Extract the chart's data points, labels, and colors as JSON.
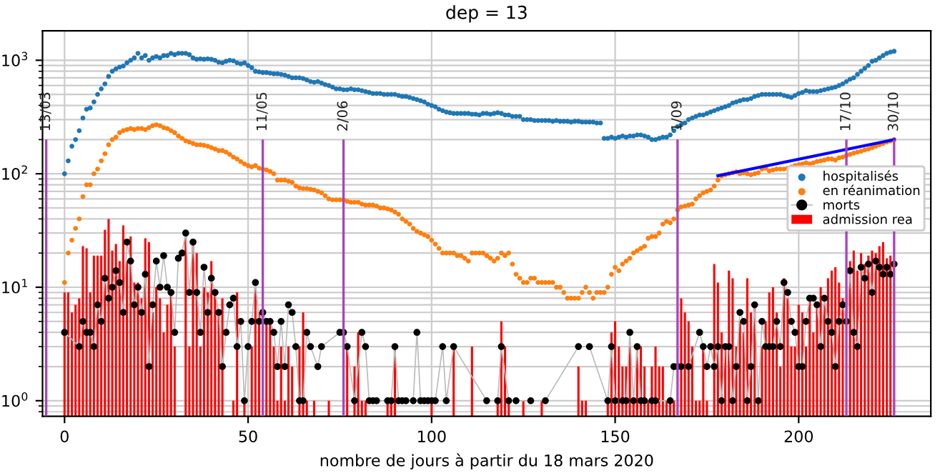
{
  "chart_data": {
    "type": "scatter",
    "title": "dep = 13",
    "xlabel": "nombre de jours à partir du 18 mars 2020",
    "x": [
      0,
      1,
      2,
      3,
      4,
      5,
      6,
      7,
      8,
      9,
      10,
      11,
      12,
      13,
      14,
      15,
      16,
      17,
      18,
      19,
      20,
      21,
      22,
      23,
      24,
      25,
      26,
      27,
      28,
      29,
      30,
      31,
      32,
      33,
      34,
      35,
      36,
      37,
      38,
      39,
      40,
      41,
      42,
      43,
      44,
      45,
      46,
      47,
      48,
      49,
      50,
      51,
      52,
      53,
      54,
      55,
      56,
      57,
      58,
      59,
      60,
      61,
      62,
      63,
      64,
      65,
      66,
      67,
      68,
      69,
      70,
      71,
      72,
      73,
      74,
      75,
      76,
      77,
      78,
      79,
      80,
      81,
      82,
      83,
      84,
      85,
      86,
      87,
      88,
      89,
      90,
      91,
      92,
      93,
      94,
      95,
      96,
      97,
      98,
      99,
      100,
      101,
      102,
      103,
      104,
      105,
      106,
      107,
      108,
      109,
      110,
      111,
      112,
      113,
      114,
      115,
      116,
      117,
      118,
      119,
      120,
      121,
      122,
      123,
      124,
      125,
      126,
      127,
      128,
      129,
      130,
      131,
      132,
      133,
      134,
      135,
      136,
      137,
      138,
      139,
      140,
      141,
      142,
      143,
      144,
      145,
      146,
      147,
      148,
      149,
      150,
      151,
      152,
      153,
      154,
      155,
      156,
      157,
      158,
      159,
      160,
      161,
      162,
      163,
      164,
      165,
      166,
      167,
      168,
      169,
      170,
      171,
      172,
      173,
      174,
      175,
      176,
      177,
      178,
      179,
      180,
      181,
      182,
      183,
      184,
      185,
      186,
      187,
      188,
      189,
      190,
      191,
      192,
      193,
      194,
      195,
      196,
      197,
      198,
      199,
      200,
      201,
      202,
      203,
      204,
      205,
      206,
      207,
      208,
      209,
      210,
      211,
      212,
      213,
      214,
      215,
      216,
      217,
      218,
      219,
      220,
      221,
      222,
      223,
      224,
      225,
      226
    ],
    "series": [
      {
        "type": "bar",
        "name": "admission rea",
        "color": "#ff0000",
        "values": [
          9,
          9,
          6,
          7,
          8,
          23,
          22,
          9,
          19,
          19,
          19,
          32,
          40,
          21,
          24,
          17,
          35,
          17,
          28,
          11,
          11,
          8,
          27,
          25,
          6,
          10,
          8,
          4,
          7,
          9,
          3,
          null,
          null,
          28,
          3,
          24,
          20,
          3,
          10,
          9,
          17,
          9,
          6,
          8,
          null,
          null,
          1,
          9,
          null,
          1,
          null,
          3,
          10,
          6,
          null,
          5,
          5,
          3,
          1,
          3,
          1,
          3,
          2,
          null,
          3,
          6,
          1,
          null,
          1,
          null,
          null,
          null,
          1,
          null,
          null,
          null,
          null,
          3,
          null,
          2,
          4,
          1,
          1,
          null,
          null,
          null,
          null,
          null,
          1,
          1,
          3,
          null,
          null,
          null,
          null,
          null,
          null,
          null,
          null,
          null,
          1,
          null,
          null,
          null,
          null,
          null,
          3,
          null,
          null,
          null,
          null,
          3,
          null,
          null,
          null,
          null,
          null,
          null,
          1,
          5,
          3,
          1,
          null,
          null,
          null,
          1,
          null,
          null,
          null,
          null,
          1,
          null,
          null,
          null,
          null,
          null,
          null,
          null,
          null,
          null,
          2,
          1,
          1,
          null,
          null,
          null,
          null,
          null,
          1,
          4,
          5,
          3,
          2,
          2,
          3,
          1,
          3,
          3,
          2,
          1,
          2,
          3,
          2,
          2,
          1,
          1,
          1,
          null,
          8,
          6,
          5,
          3,
          1,
          1,
          3,
          1,
          null,
          16,
          11,
          4,
          3,
          14,
          12,
          3,
          5,
          4,
          12,
          6,
          7,
          1,
          3,
          5,
          9,
          10,
          6,
          2,
          12,
          8,
          3,
          3,
          7,
          6,
          3,
          8,
          4,
          7,
          10,
          7,
          12,
          14,
          15,
          11,
          8,
          null,
          17,
          21,
          14,
          20,
          16,
          19,
          21,
          20,
          23,
          25,
          18,
          19,
          null
        ]
      },
      {
        "name": "hospitalisés",
        "color": "#1f77b4",
        "values": [
          100,
          130,
          175,
          200,
          240,
          310,
          370,
          380,
          430,
          500,
          560,
          620,
          720,
          800,
          840,
          870,
          890,
          950,
          1000,
          1050,
          1150,
          1050,
          1100,
          1000,
          1050,
          1080,
          1050,
          1100,
          1100,
          1150,
          1120,
          1150,
          1150,
          1150,
          1120,
          1050,
          1020,
          1030,
          1020,
          1030,
          1020,
          1000,
          960,
          950,
          980,
          1000,
          990,
          950,
          930,
          950,
          900,
          860,
          800,
          790,
          780,
          780,
          770,
          760,
          760,
          750,
          740,
          720,
          700,
          700,
          700,
          690,
          670,
          650,
          640,
          650,
          630,
          610,
          600,
          580,
          560,
          560,
          550,
          550,
          560,
          550,
          550,
          540,
          530,
          520,
          510,
          510,
          510,
          500,
          500,
          500,
          500,
          490,
          480,
          480,
          470,
          460,
          450,
          440,
          430,
          410,
          400,
          390,
          370,
          360,
          350,
          345,
          340,
          340,
          340,
          340,
          340,
          335,
          335,
          330,
          340,
          340,
          335,
          340,
          345,
          340,
          330,
          330,
          320,
          320,
          320,
          300,
          300,
          300,
          295,
          295,
          295,
          295,
          295,
          290,
          295,
          290,
          290,
          290,
          285,
          290,
          290,
          285,
          285,
          285,
          285,
          280,
          280,
          205,
          205,
          210,
          205,
          210,
          215,
          210,
          215,
          215,
          220,
          220,
          215,
          210,
          200,
          200,
          205,
          210,
          210,
          220,
          240,
          260,
          270,
          280,
          300,
          310,
          320,
          330,
          330,
          340,
          350,
          360,
          370,
          380,
          390,
          400,
          420,
          430,
          440,
          450,
          450,
          460,
          480,
          490,
          500,
          500,
          500,
          500,
          500,
          500,
          490,
          480,
          470,
          490,
          510,
          520,
          540,
          530,
          530,
          530,
          540,
          550,
          560,
          570,
          580,
          600,
          620,
          650,
          680,
          700,
          750,
          800,
          850,
          900,
          980,
          1000,
          1050,
          1100,
          1150,
          1180,
          1200
        ]
      },
      {
        "name": "en réanimation",
        "color": "#ff7f0e",
        "values": [
          11,
          20,
          26,
          33,
          40,
          63,
          80,
          80,
          100,
          110,
          130,
          150,
          180,
          200,
          210,
          230,
          240,
          245,
          250,
          245,
          250,
          250,
          245,
          255,
          265,
          270,
          265,
          255,
          250,
          240,
          230,
          215,
          205,
          195,
          190,
          185,
          180,
          180,
          178,
          175,
          170,
          165,
          160,
          160,
          155,
          148,
          140,
          135,
          128,
          122,
          118,
          115,
          118,
          112,
          110,
          108,
          105,
          100,
          88,
          88,
          88,
          86,
          84,
          78,
          75,
          74,
          74,
          73,
          72,
          70,
          68,
          64,
          60,
          59,
          59,
          59,
          59,
          57,
          56,
          56,
          56,
          54,
          53,
          53,
          53,
          52,
          50,
          50,
          49,
          48,
          46,
          44,
          40,
          38,
          36,
          33,
          31,
          30,
          29,
          28,
          26,
          24,
          22,
          20,
          20,
          20,
          20,
          19,
          19,
          18,
          17,
          20,
          20,
          20,
          20,
          19,
          18,
          17,
          18,
          20,
          19,
          20,
          16,
          13,
          12,
          11,
          11,
          12,
          12,
          11,
          11,
          11,
          11,
          11,
          10,
          10,
          9,
          8,
          8,
          8,
          8,
          9,
          10,
          9,
          8,
          9,
          9,
          9,
          10,
          13,
          15,
          14,
          16,
          17,
          18,
          20,
          21,
          22,
          23,
          27,
          28,
          28,
          30,
          36,
          38,
          37,
          40,
          48,
          51,
          52,
          53,
          54,
          60,
          64,
          68,
          70,
          72,
          78,
          88,
          96,
          98,
          100,
          102,
          104,
          100,
          102,
          100,
          98,
          100,
          102,
          110,
          112,
          106,
          108,
          110,
          110,
          110,
          112,
          115,
          118,
          120,
          122,
          125,
          122,
          125,
          128,
          130,
          132,
          135,
          135,
          132,
          138,
          140,
          145,
          148,
          152,
          155,
          158,
          162,
          165,
          170,
          175,
          180,
          185,
          190,
          195,
          200
        ]
      },
      {
        "type": "line",
        "name": "morts",
        "color": "#000000",
        "marker": "circle",
        "values": [
          4,
          null,
          null,
          null,
          3,
          5,
          4,
          4,
          3,
          7,
          5,
          12,
          8,
          10,
          14,
          11,
          6,
          25,
          17,
          7,
          10,
          6,
          13,
          2,
          7,
          17,
          10,
          19,
          10,
          9,
          4,
          18,
          20,
          30,
          9,
          25,
          9,
          4,
          15,
          6,
          12,
          9,
          6,
          2,
          4,
          7,
          8,
          3,
          5,
          1,
          3,
          5,
          11,
          5,
          6,
          5,
          5,
          4,
          2,
          5,
          2,
          7,
          6,
          3,
          1,
          1,
          4,
          3,
          null,
          2,
          3,
          null,
          null,
          null,
          null,
          4,
          4,
          3,
          null,
          1,
          null,
          4,
          3,
          1,
          1,
          1,
          null,
          null,
          1,
          1,
          3,
          1,
          1,
          1,
          null,
          1,
          4,
          1,
          1,
          1,
          1,
          1,
          null,
          3,
          1,
          null,
          3,
          null,
          null,
          null,
          null,
          null,
          null,
          null,
          null,
          1,
          null,
          null,
          1,
          3,
          null,
          1,
          null,
          1,
          null,
          null,
          null,
          1,
          null,
          null,
          null,
          1,
          null,
          null,
          null,
          null,
          null,
          null,
          null,
          null,
          3,
          null,
          null,
          3,
          null,
          null,
          null,
          null,
          1,
          3,
          1,
          null,
          1,
          1,
          4,
          1,
          3,
          1,
          1,
          null,
          1,
          1,
          null,
          null,
          null,
          1,
          2,
          2,
          2,
          null,
          2,
          null,
          null,
          4,
          3,
          2,
          3,
          2,
          3,
          1,
          3,
          3,
          1,
          2,
          6,
          5,
          1,
          2,
          7,
          1,
          5,
          3,
          3,
          3,
          5,
          3,
          11,
          9,
          5,
          4,
          2,
          2,
          5,
          8,
          8,
          7,
          3,
          8,
          5,
          4,
          2,
          5,
          7,
          5,
          14,
          4,
          3,
          15,
          12,
          16,
          9,
          17,
          15,
          13,
          15,
          13,
          16
        ]
      },
      {
        "type": "line",
        "color": "#0000ff",
        "x": [
          178,
          226
        ],
        "values": [
          96,
          200
        ]
      }
    ],
    "ref_lines": [
      {
        "axis": "x",
        "value": -5,
        "color": "#aa44bb"
      },
      {
        "axis": "x",
        "value": 54,
        "color": "#aa44bb"
      },
      {
        "axis": "x",
        "value": 76,
        "color": "#aa44bb"
      },
      {
        "axis": "x",
        "value": 167,
        "color": "#aa44bb"
      },
      {
        "axis": "x",
        "value": 213,
        "color": "#aa44bb"
      },
      {
        "axis": "x",
        "value": 226,
        "color": "#aa44bb"
      }
    ],
    "annotations": [
      {
        "text": "13/03",
        "x": -5,
        "y": 200
      },
      {
        "text": "11/05",
        "x": 54,
        "y": 200
      },
      {
        "text": "2/06",
        "x": 76,
        "y": 200
      },
      {
        "text": "1/09",
        "x": 167,
        "y": 200
      },
      {
        "text": "17/10",
        "x": 213,
        "y": 200
      },
      {
        "text": "30/10",
        "x": 226,
        "y": 200
      }
    ],
    "log": "y",
    "grid": true,
    "legend": "right",
    "xlim": [
      -6,
      236
    ],
    "ylim": [
      0.73,
      1820
    ],
    "xticks": [
      0,
      50,
      100,
      150,
      200
    ],
    "yticks": [
      {
        "value": 1,
        "label": "10$^{0}$"
      },
      {
        "value": 10,
        "label": "10$^{1}$"
      },
      {
        "value": 100,
        "label": "10$^{2}$"
      },
      {
        "value": 1000,
        "label": "10$^{3}$"
      }
    ]
  }
}
